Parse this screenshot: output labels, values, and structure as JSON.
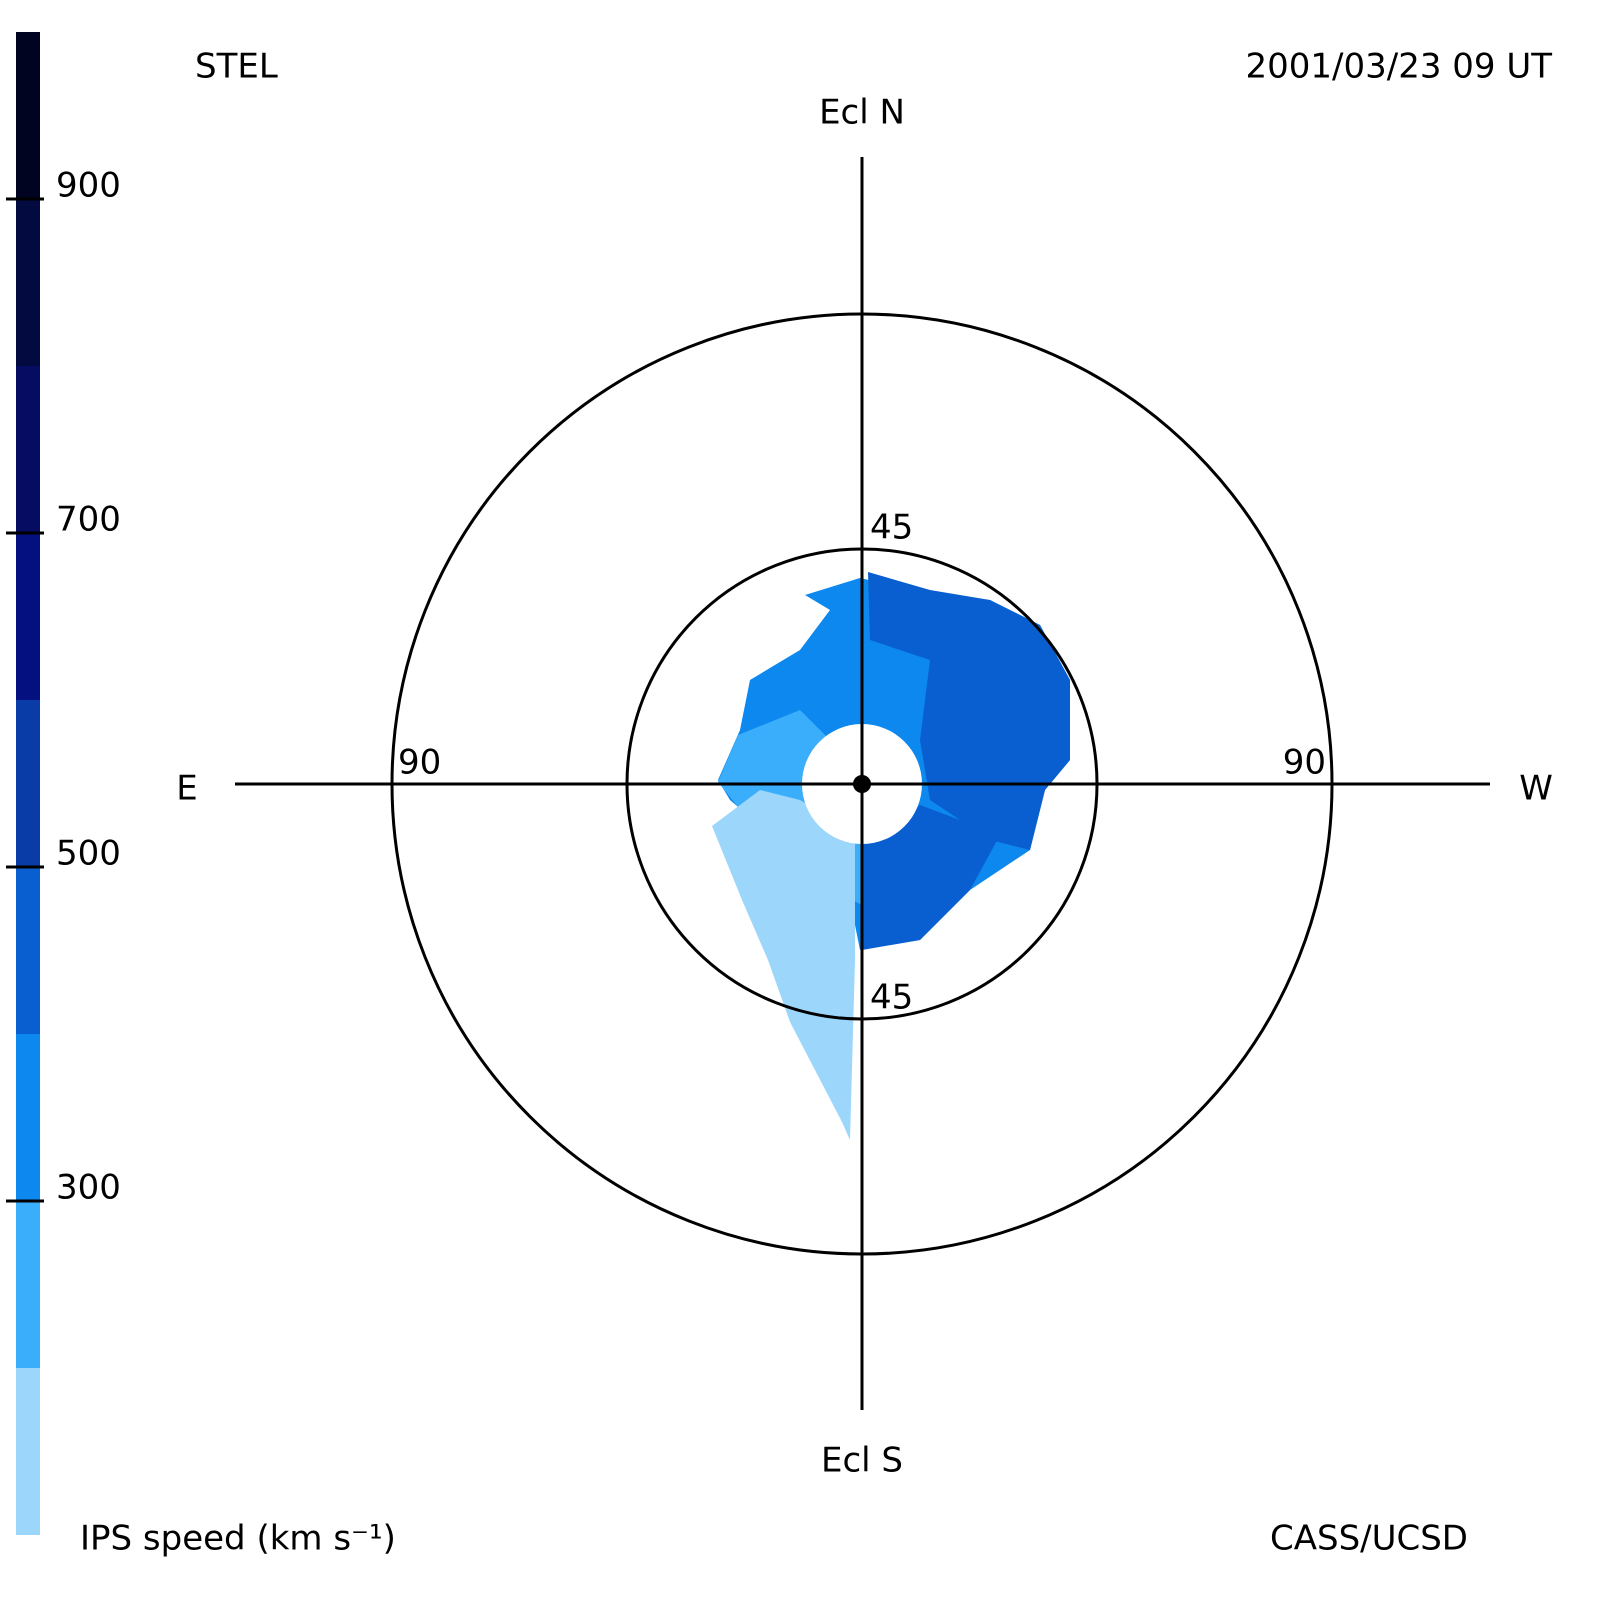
{
  "header": {
    "left": "STEL",
    "right": "2001/03/23 09 UT"
  },
  "footer": {
    "right": "CASS/UCSD"
  },
  "chart_data": {
    "type": "polar-map",
    "labels": {
      "north": "Ecl N",
      "south": "Ecl S",
      "east": "E",
      "west": "W"
    },
    "rings": [
      45,
      90
    ],
    "colorbar": {
      "label": "IPS speed (km s⁻¹)",
      "lim": [
        100,
        1000
      ],
      "ticks": [
        300,
        500,
        700,
        900
      ],
      "bins": [
        100,
        200,
        300,
        400,
        500,
        600,
        700,
        800,
        900,
        1000
      ],
      "colors": [
        "#9dd6fb",
        "#3aaefa",
        "#0c88ee",
        "#0a5fd0",
        "#0a3ca8",
        "#040f80",
        "#050c62",
        "#030a40",
        "#010420"
      ]
    },
    "regions": [
      {
        "value": 350
      },
      {
        "value": 450
      },
      {
        "value": 450
      },
      {
        "value": 250
      },
      {
        "value": 150
      }
    ]
  }
}
